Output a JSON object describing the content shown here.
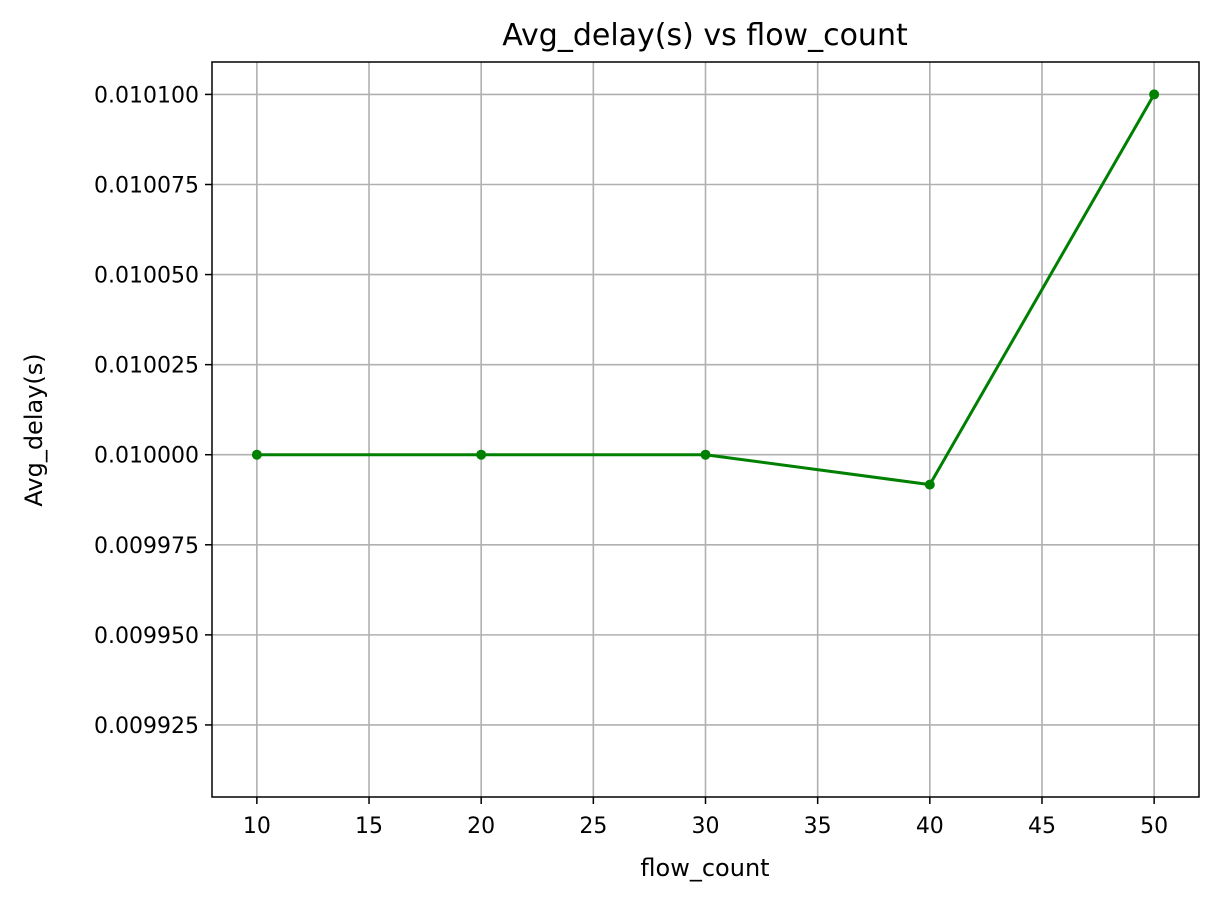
{
  "chart_data": {
    "type": "line",
    "title": "Avg_delay(s) vs flow_count",
    "xlabel": "flow_count",
    "ylabel": "Avg_delay(s)",
    "x": [
      10,
      20,
      30,
      40,
      50
    ],
    "series": [
      {
        "values": [
          0.01,
          0.01,
          0.01,
          0.0099917,
          0.0101
        ],
        "color": "#008000",
        "marker": "circle"
      }
    ],
    "xlim": [
      8,
      52
    ],
    "ylim": [
      0.009905,
      0.010109
    ],
    "xticks": [
      10,
      15,
      20,
      25,
      30,
      35,
      40,
      45,
      50
    ],
    "yticks": [
      0.009925,
      0.00995,
      0.009975,
      0.01,
      0.010025,
      0.01005,
      0.010075,
      0.0101
    ],
    "xtick_labels": [
      "10",
      "15",
      "20",
      "25",
      "30",
      "35",
      "40",
      "45",
      "50"
    ],
    "ytick_labels": [
      "0.009925",
      "0.009950",
      "0.009975",
      "0.010000",
      "0.010025",
      "0.010050",
      "0.010075",
      "0.010100"
    ],
    "grid": true,
    "grid_color": "#b0b0b0"
  }
}
